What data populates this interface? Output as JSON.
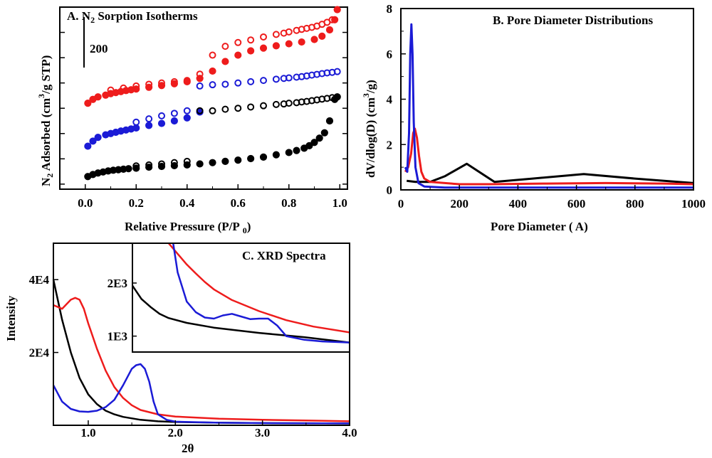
{
  "chart_data": [
    {
      "panel": "A",
      "type": "scatter",
      "title_prefix": "A. N",
      "title_sub": "2",
      "title_suffix": " Sorption Isotherms",
      "xlabel": "Relative Pressure (P/P",
      "xlabel_sub": "0",
      "xlabel_close": ")",
      "ylabel_prefix": "N",
      "ylabel_sub": "2",
      "ylabel_mid": " Adsorbed (cm",
      "ylabel_sup": "3",
      "ylabel_suffix": "/g STP)",
      "scale_bar_label": "200",
      "scale_bar_value": 200,
      "xlim": [
        -0.1,
        1.03
      ],
      "ylim": [
        -20,
        700
      ],
      "xticks": [
        "0.0",
        "0.2",
        "0.4",
        "0.6",
        "0.8",
        "1.0"
      ],
      "xtick_values": [
        0.0,
        0.2,
        0.4,
        0.6,
        0.8,
        1.0
      ],
      "series": [
        {
          "name": "red",
          "color": "#ee1c1c",
          "adsorption_x": [
            0.01,
            0.03,
            0.05,
            0.08,
            0.1,
            0.12,
            0.14,
            0.16,
            0.18,
            0.2,
            0.25,
            0.3,
            0.35,
            0.4,
            0.45,
            0.5,
            0.55,
            0.6,
            0.65,
            0.7,
            0.75,
            0.8,
            0.85,
            0.9,
            0.93,
            0.96,
            0.98,
            0.99
          ],
          "adsorption_y": [
            320,
            335,
            345,
            352,
            358,
            362,
            366,
            370,
            373,
            376,
            383,
            390,
            397,
            405,
            418,
            447,
            485,
            510,
            527,
            538,
            547,
            555,
            562,
            572,
            585,
            610,
            650,
            690
          ],
          "desorption_x": [
            0.99,
            0.97,
            0.95,
            0.93,
            0.91,
            0.89,
            0.87,
            0.85,
            0.83,
            0.8,
            0.78,
            0.75,
            0.7,
            0.65,
            0.6,
            0.55,
            0.5,
            0.45,
            0.4,
            0.35,
            0.3,
            0.25,
            0.2,
            0.15,
            0.1
          ],
          "desorption_y": [
            690,
            650,
            640,
            632,
            625,
            620,
            616,
            612,
            608,
            602,
            597,
            592,
            582,
            570,
            560,
            545,
            510,
            435,
            410,
            405,
            400,
            395,
            388,
            380,
            372
          ]
        },
        {
          "name": "blue",
          "color": "#1b1bd6",
          "adsorption_x": [
            0.01,
            0.03,
            0.05,
            0.08,
            0.1,
            0.12,
            0.14,
            0.16,
            0.18,
            0.2,
            0.25,
            0.3,
            0.35,
            0.4,
            0.45
          ],
          "adsorption_y": [
            150,
            170,
            185,
            195,
            200,
            205,
            210,
            214,
            218,
            222,
            232,
            240,
            250,
            262,
            285
          ],
          "desorption_x": [
            0.99,
            0.97,
            0.95,
            0.93,
            0.91,
            0.89,
            0.87,
            0.85,
            0.83,
            0.8,
            0.78,
            0.75,
            0.7,
            0.65,
            0.6,
            0.55,
            0.5,
            0.45,
            0.4,
            0.35,
            0.3,
            0.25,
            0.2
          ],
          "desorption_y": [
            445,
            442,
            440,
            437,
            434,
            431,
            428,
            425,
            423,
            420,
            418,
            415,
            410,
            405,
            400,
            395,
            393,
            388,
            290,
            280,
            270,
            258,
            245
          ]
        },
        {
          "name": "black",
          "color": "#000000",
          "adsorption_x": [
            0.01,
            0.03,
            0.05,
            0.07,
            0.09,
            0.11,
            0.13,
            0.15,
            0.17,
            0.2,
            0.25,
            0.3,
            0.35,
            0.4,
            0.45,
            0.5,
            0.55,
            0.6,
            0.65,
            0.7,
            0.75,
            0.8,
            0.83,
            0.86,
            0.88,
            0.9,
            0.92,
            0.94,
            0.96,
            0.98,
            0.99
          ],
          "adsorption_y": [
            30,
            38,
            44,
            48,
            52,
            55,
            57,
            59,
            61,
            63,
            67,
            70,
            73,
            76,
            80,
            85,
            90,
            95,
            101,
            107,
            116,
            125,
            133,
            142,
            152,
            165,
            182,
            203,
            250,
            335,
            345
          ],
          "desorption_x": [
            0.99,
            0.97,
            0.95,
            0.93,
            0.91,
            0.89,
            0.87,
            0.85,
            0.83,
            0.8,
            0.78,
            0.75,
            0.7,
            0.65,
            0.6,
            0.55,
            0.5,
            0.45,
            0.4,
            0.35,
            0.3,
            0.25,
            0.2
          ],
          "desorption_y": [
            345,
            342,
            339,
            336,
            333,
            330,
            327,
            325,
            322,
            320,
            317,
            315,
            310,
            305,
            300,
            296,
            290,
            290,
            90,
            85,
            80,
            76,
            72
          ]
        }
      ]
    },
    {
      "panel": "B",
      "type": "line",
      "title": "B. Pore Diameter Distributions",
      "xlabel": "Pore Diameter ( A)",
      "ylabel_prefix": "dV/dlog(D) (cm",
      "ylabel_sup": "3",
      "ylabel_suffix": "/g)",
      "xlim": [
        0,
        1000
      ],
      "ylim": [
        0,
        8
      ],
      "xticks": [
        "0",
        "200",
        "400",
        "600",
        "800",
        "1000"
      ],
      "xtick_values": [
        0,
        200,
        400,
        600,
        800,
        1000
      ],
      "yticks": [
        "0",
        "2",
        "4",
        "6",
        "8"
      ],
      "ytick_values": [
        0,
        2,
        4,
        6,
        8
      ],
      "series": [
        {
          "name": "black",
          "color": "#000000",
          "x": [
            20,
            50,
            100,
            150,
            225,
            320,
            450,
            625,
            800,
            1000
          ],
          "y": [
            0.4,
            0.35,
            0.35,
            0.6,
            1.15,
            0.35,
            0.5,
            0.7,
            0.5,
            0.3
          ]
        },
        {
          "name": "red",
          "color": "#ee1c1c",
          "x": [
            15,
            25,
            35,
            42,
            48,
            55,
            62,
            70,
            80,
            100,
            150,
            200,
            300,
            500,
            700,
            900,
            1000
          ],
          "y": [
            0.8,
            1.0,
            1.6,
            2.5,
            2.7,
            2.3,
            1.5,
            0.8,
            0.5,
            0.35,
            0.3,
            0.25,
            0.25,
            0.28,
            0.3,
            0.28,
            0.25
          ]
        },
        {
          "name": "blue",
          "color": "#1b1bd6",
          "x": [
            15,
            22,
            28,
            32,
            36,
            40,
            44,
            50,
            60,
            80,
            150,
            400,
            1000
          ],
          "y": [
            1.0,
            0.8,
            2.5,
            6.0,
            7.3,
            6.0,
            3.0,
            1.0,
            0.3,
            0.15,
            0.1,
            0.1,
            0.1
          ]
        }
      ]
    },
    {
      "panel": "C",
      "type": "line",
      "title": "C. XRD Spectra",
      "xlabel": "2θ",
      "ylabel": "Intensity",
      "xlim": [
        0.6,
        4.0
      ],
      "ylim": [
        0,
        50000
      ],
      "xticks": [
        "1.0",
        "2.0",
        "3.0",
        "4.0"
      ],
      "xtick_values": [
        1.0,
        2.0,
        3.0,
        4.0
      ],
      "yticks": [
        "2E4",
        "4E4"
      ],
      "ytick_values": [
        20000,
        40000
      ],
      "series": [
        {
          "name": "black",
          "color": "#000000",
          "x": [
            0.6,
            0.7,
            0.8,
            0.9,
            1.0,
            1.1,
            1.2,
            1.3,
            1.4,
            1.6,
            1.8,
            2.0,
            2.5,
            3.0,
            4.0
          ],
          "y": [
            40000,
            29000,
            20000,
            13000,
            8500,
            5800,
            4000,
            3000,
            2300,
            1500,
            1100,
            900,
            700,
            600,
            500
          ]
        },
        {
          "name": "red",
          "color": "#ee1c1c",
          "x": [
            0.6,
            0.7,
            0.8,
            0.85,
            0.9,
            0.95,
            1.0,
            1.1,
            1.2,
            1.3,
            1.4,
            1.5,
            1.6,
            1.8,
            2.0,
            2.5,
            3.0,
            3.5,
            4.0
          ],
          "y": [
            33000,
            32000,
            34500,
            35000,
            34500,
            32000,
            28000,
            21000,
            15000,
            10500,
            7500,
            5500,
            4200,
            3000,
            2400,
            1800,
            1500,
            1300,
            1100
          ]
        },
        {
          "name": "blue",
          "color": "#1b1bd6",
          "x": [
            0.6,
            0.7,
            0.8,
            0.9,
            1.0,
            1.1,
            1.2,
            1.3,
            1.4,
            1.5,
            1.55,
            1.6,
            1.65,
            1.7,
            1.75,
            1.8,
            1.9,
            2.0,
            2.5,
            3.0,
            4.0
          ],
          "y": [
            11000,
            6500,
            4500,
            3800,
            3700,
            4000,
            5000,
            7000,
            11000,
            15500,
            16500,
            16800,
            15500,
            12000,
            6500,
            3000,
            1500,
            1000,
            700,
            600,
            500
          ]
        }
      ],
      "inset": {
        "xlim": [
          1.6,
          4.0
        ],
        "ylim": [
          700,
          2750
        ],
        "yticks": [
          "1E3",
          "2E3"
        ],
        "ytick_values": [
          1000,
          2000
        ],
        "series": [
          {
            "name": "black",
            "color": "#000000",
            "x": [
              1.6,
              1.7,
              1.8,
              1.9,
              2.0,
              2.2,
              2.5,
              3.0,
              3.5,
              4.0
            ],
            "y": [
              1950,
              1700,
              1550,
              1420,
              1340,
              1250,
              1160,
              1060,
              980,
              880
            ]
          },
          {
            "name": "red",
            "color": "#ee1c1c",
            "x": [
              2.0,
              2.1,
              2.2,
              2.3,
              2.4,
              2.5,
              2.7,
              3.0,
              3.3,
              3.6,
              4.0
            ],
            "y": [
              2750,
              2550,
              2350,
              2180,
              2020,
              1880,
              1680,
              1470,
              1300,
              1180,
              1070
            ]
          },
          {
            "name": "blue",
            "color": "#1b1bd6",
            "x": [
              2.05,
              2.1,
              2.2,
              2.3,
              2.4,
              2.5,
              2.6,
              2.7,
              2.8,
              2.9,
              3.0,
              3.1,
              3.2,
              3.3,
              3.5,
              3.7,
              4.0
            ],
            "y": [
              2750,
              2200,
              1650,
              1450,
              1350,
              1330,
              1390,
              1420,
              1370,
              1320,
              1330,
              1330,
              1200,
              1000,
              930,
              900,
              880
            ]
          }
        ]
      }
    }
  ]
}
